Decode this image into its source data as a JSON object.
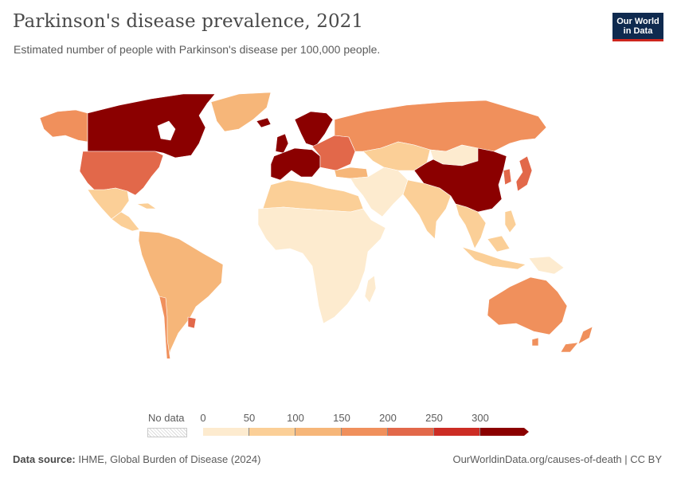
{
  "header": {
    "title": "Parkinson's disease prevalence, 2021",
    "subtitle": "Estimated number of people with Parkinson's disease per 100,000 people."
  },
  "logo": {
    "line1": "Our World",
    "line2": "in Data"
  },
  "legend": {
    "no_data_label": "No data",
    "ticks": [
      "0",
      "50",
      "100",
      "150",
      "200",
      "250",
      "300"
    ],
    "bins": [
      {
        "from": 0,
        "to": 50,
        "color": "#fdebcf"
      },
      {
        "from": 50,
        "to": 100,
        "color": "#fbcf97"
      },
      {
        "from": 100,
        "to": 150,
        "color": "#f6b679"
      },
      {
        "from": 150,
        "to": 200,
        "color": "#f0905c"
      },
      {
        "from": 200,
        "to": 250,
        "color": "#e2684a"
      },
      {
        "from": 250,
        "to": 300,
        "color": "#cc2c24"
      },
      {
        "from": 300,
        "to": null,
        "color": "#8b0000"
      }
    ]
  },
  "chart_data": {
    "type": "map",
    "title": "Parkinson's disease prevalence, 2021",
    "subtitle": "Estimated number of people with Parkinson's disease per 100,000 people.",
    "unit": "per 100,000 people",
    "year": 2021,
    "regions": [
      {
        "name": "Canada",
        "bin": "300+"
      },
      {
        "name": "United States",
        "bin": "200-250"
      },
      {
        "name": "Mexico",
        "bin": "50-100"
      },
      {
        "name": "Central America",
        "bin": "50-100"
      },
      {
        "name": "Greenland",
        "bin": "100-150"
      },
      {
        "name": "Alaska",
        "bin": "150-200"
      },
      {
        "name": "South America",
        "bin": "100-150"
      },
      {
        "name": "Chile",
        "bin": "150-200"
      },
      {
        "name": "Uruguay",
        "bin": "200-250"
      },
      {
        "name": "Western Europe",
        "bin": "300+"
      },
      {
        "name": "Scandinavia",
        "bin": "300+"
      },
      {
        "name": "Eastern Europe",
        "bin": "200-250"
      },
      {
        "name": "Russia",
        "bin": "150-200"
      },
      {
        "name": "Central Asia",
        "bin": "50-100"
      },
      {
        "name": "Turkey",
        "bin": "100-150"
      },
      {
        "name": "Middle East",
        "bin": "0-50"
      },
      {
        "name": "North Africa",
        "bin": "50-100"
      },
      {
        "name": "Sub-Saharan Africa",
        "bin": "0-50"
      },
      {
        "name": "India",
        "bin": "50-100"
      },
      {
        "name": "China",
        "bin": "300+"
      },
      {
        "name": "Mongolia",
        "bin": "0-50"
      },
      {
        "name": "Japan",
        "bin": "200-250"
      },
      {
        "name": "Korea",
        "bin": "200-250"
      },
      {
        "name": "Southeast Asia",
        "bin": "50-100"
      },
      {
        "name": "Indonesia",
        "bin": "50-100"
      },
      {
        "name": "Papua New Guinea",
        "bin": "0-50"
      },
      {
        "name": "Australia",
        "bin": "150-200"
      },
      {
        "name": "New Zealand",
        "bin": "150-200"
      }
    ]
  },
  "footer": {
    "source_label": "Data source:",
    "source_text": "IHME, Global Burden of Disease (2024)",
    "right_text": "OurWorldinData.org/causes-of-death | CC BY"
  }
}
